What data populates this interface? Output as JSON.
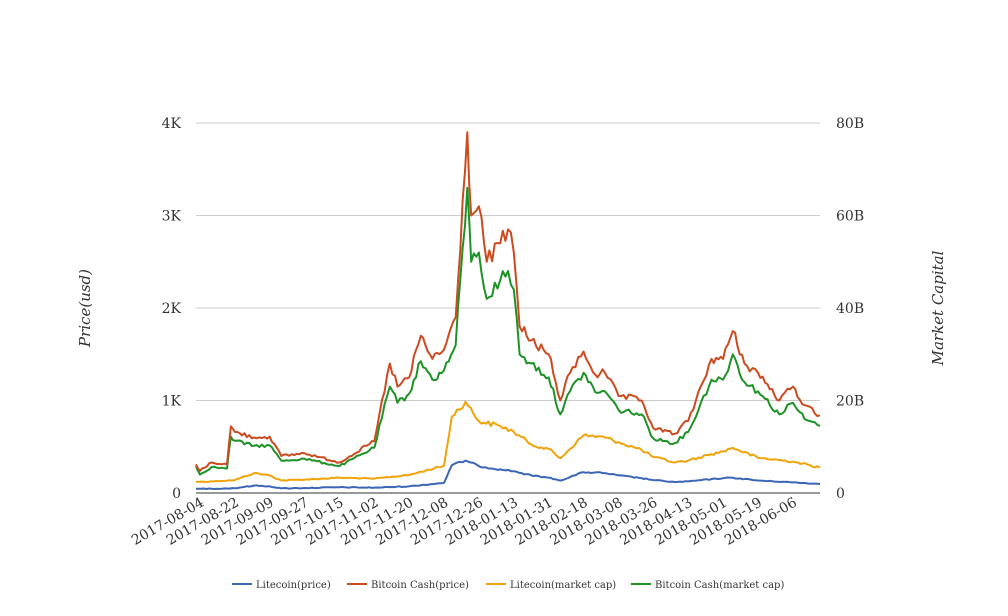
{
  "chart_data": {
    "type": "line",
    "title": "",
    "legend_position": "bottom",
    "grid": true,
    "x_tick_labels": [
      "2017-08-04",
      "2017-08-22",
      "2017-09-09",
      "2017-09-27",
      "2017-10-15",
      "2017-11-02",
      "2017-11-20",
      "2017-12-08",
      "2017-12-26",
      "2018-01-13",
      "2018-01-31",
      "2018-02-18",
      "2018-03-08",
      "2018-03-26",
      "2018-04-13",
      "2018-05-01",
      "2018-05-19",
      "2018-06-06"
    ],
    "x_range": [
      "2017-08-02",
      "2018-06-20"
    ],
    "y_left": {
      "label": "Price(usd)",
      "range": [
        0,
        4000
      ],
      "ticks": [
        0,
        1000,
        2000,
        3000,
        4000
      ],
      "tick_labels": [
        "0",
        "1K",
        "2K",
        "3K",
        "4K"
      ]
    },
    "y_right": {
      "label": "Market Capital",
      "range": [
        0,
        80000000000
      ],
      "ticks": [
        0,
        20000000000,
        40000000000,
        60000000000,
        80000000000
      ],
      "tick_labels": [
        "0",
        "20B",
        "40B",
        "60B",
        "80B"
      ]
    },
    "series": [
      {
        "name": "Litecoin(price)",
        "axis": "left",
        "color": "#3a66b5",
        "points": [
          [
            "2017-08-02",
            45
          ],
          [
            "2017-08-10",
            47
          ],
          [
            "2017-08-22",
            52
          ],
          [
            "2017-09-01",
            80
          ],
          [
            "2017-09-09",
            72
          ],
          [
            "2017-09-15",
            50
          ],
          [
            "2017-09-27",
            54
          ],
          [
            "2017-10-15",
            62
          ],
          [
            "2017-11-02",
            58
          ],
          [
            "2017-11-20",
            72
          ],
          [
            "2017-12-08",
            110
          ],
          [
            "2017-12-12",
            300
          ],
          [
            "2017-12-19",
            350
          ],
          [
            "2017-12-26",
            290
          ],
          [
            "2018-01-06",
            255
          ],
          [
            "2018-01-13",
            235
          ],
          [
            "2018-01-22",
            190
          ],
          [
            "2018-01-31",
            165
          ],
          [
            "2018-02-06",
            135
          ],
          [
            "2018-02-18",
            225
          ],
          [
            "2018-03-01",
            215
          ],
          [
            "2018-03-08",
            190
          ],
          [
            "2018-03-20",
            160
          ],
          [
            "2018-03-26",
            140
          ],
          [
            "2018-04-06",
            118
          ],
          [
            "2018-04-13",
            125
          ],
          [
            "2018-04-25",
            150
          ],
          [
            "2018-05-01",
            160
          ],
          [
            "2018-05-06",
            165
          ],
          [
            "2018-05-19",
            135
          ],
          [
            "2018-06-06",
            115
          ],
          [
            "2018-06-20",
            97
          ]
        ]
      },
      {
        "name": "Bitcoin Cash(price)",
        "axis": "left",
        "color": "#cc4a1f",
        "points": [
          [
            "2017-08-02",
            310
          ],
          [
            "2017-08-04",
            240
          ],
          [
            "2017-08-10",
            330
          ],
          [
            "2017-08-18",
            310
          ],
          [
            "2017-08-20",
            720
          ],
          [
            "2017-08-22",
            660
          ],
          [
            "2017-09-01",
            600
          ],
          [
            "2017-09-09",
            610
          ],
          [
            "2017-09-15",
            400
          ],
          [
            "2017-09-27",
            430
          ],
          [
            "2017-10-15",
            330
          ],
          [
            "2017-11-02",
            560
          ],
          [
            "2017-11-10",
            1400
          ],
          [
            "2017-11-14",
            1150
          ],
          [
            "2017-11-20",
            1250
          ],
          [
            "2017-11-26",
            1700
          ],
          [
            "2017-12-02",
            1450
          ],
          [
            "2017-12-08",
            1550
          ],
          [
            "2017-12-14",
            1900
          ],
          [
            "2017-12-20",
            3900
          ],
          [
            "2017-12-22",
            3000
          ],
          [
            "2017-12-26",
            3100
          ],
          [
            "2017-12-30",
            2500
          ],
          [
            "2018-01-06",
            2700
          ],
          [
            "2018-01-10",
            2850
          ],
          [
            "2018-01-13",
            2600
          ],
          [
            "2018-01-16",
            1800
          ],
          [
            "2018-01-22",
            1650
          ],
          [
            "2018-01-31",
            1500
          ],
          [
            "2018-02-06",
            1000
          ],
          [
            "2018-02-11",
            1300
          ],
          [
            "2018-02-18",
            1530
          ],
          [
            "2018-02-24",
            1280
          ],
          [
            "2018-03-01",
            1300
          ],
          [
            "2018-03-08",
            1050
          ],
          [
            "2018-03-20",
            1000
          ],
          [
            "2018-03-26",
            700
          ],
          [
            "2018-04-06",
            640
          ],
          [
            "2018-04-13",
            780
          ],
          [
            "2018-04-25",
            1450
          ],
          [
            "2018-05-01",
            1450
          ],
          [
            "2018-05-06",
            1750
          ],
          [
            "2018-05-12",
            1400
          ],
          [
            "2018-05-19",
            1300
          ],
          [
            "2018-05-30",
            1000
          ],
          [
            "2018-06-06",
            1150
          ],
          [
            "2018-06-12",
            950
          ],
          [
            "2018-06-20",
            840
          ]
        ]
      },
      {
        "name": "Litecoin(market cap)",
        "axis": "right",
        "color": "#f0a30a",
        "points": [
          [
            "2017-08-02",
            2400000000
          ],
          [
            "2017-08-10",
            2500000000
          ],
          [
            "2017-08-22",
            2800000000
          ],
          [
            "2017-09-01",
            4300000000
          ],
          [
            "2017-09-09",
            3800000000
          ],
          [
            "2017-09-15",
            2700000000
          ],
          [
            "2017-09-27",
            2900000000
          ],
          [
            "2017-10-15",
            3300000000
          ],
          [
            "2017-11-02",
            3100000000
          ],
          [
            "2017-11-20",
            3900000000
          ],
          [
            "2017-12-08",
            5900000000
          ],
          [
            "2017-12-12",
            16500000000
          ],
          [
            "2017-12-19",
            19700000000
          ],
          [
            "2017-12-26",
            15500000000
          ],
          [
            "2018-01-06",
            14500000000
          ],
          [
            "2018-01-13",
            13200000000
          ],
          [
            "2018-01-22",
            10500000000
          ],
          [
            "2018-01-31",
            9500000000
          ],
          [
            "2018-02-06",
            7500000000
          ],
          [
            "2018-02-18",
            12500000000
          ],
          [
            "2018-03-01",
            12000000000
          ],
          [
            "2018-03-08",
            11000000000
          ],
          [
            "2018-03-20",
            9300000000
          ],
          [
            "2018-03-26",
            7800000000
          ],
          [
            "2018-04-06",
            6600000000
          ],
          [
            "2018-04-13",
            7000000000
          ],
          [
            "2018-04-25",
            8400000000
          ],
          [
            "2018-05-01",
            9000000000
          ],
          [
            "2018-05-06",
            9800000000
          ],
          [
            "2018-05-19",
            7600000000
          ],
          [
            "2018-06-06",
            6800000000
          ],
          [
            "2018-06-20",
            5500000000
          ]
        ]
      },
      {
        "name": "Bitcoin Cash(market cap)",
        "axis": "right",
        "color": "#1d9225",
        "points": [
          [
            "2017-08-02",
            5800000000
          ],
          [
            "2017-08-04",
            4000000000
          ],
          [
            "2017-08-10",
            5600000000
          ],
          [
            "2017-08-18",
            5300000000
          ],
          [
            "2017-08-20",
            12200000000
          ],
          [
            "2017-08-22",
            11300000000
          ],
          [
            "2017-09-01",
            10200000000
          ],
          [
            "2017-09-09",
            10300000000
          ],
          [
            "2017-09-15",
            7000000000
          ],
          [
            "2017-09-27",
            7400000000
          ],
          [
            "2017-10-15",
            5800000000
          ],
          [
            "2017-11-02",
            9800000000
          ],
          [
            "2017-11-10",
            23000000000
          ],
          [
            "2017-11-14",
            19500000000
          ],
          [
            "2017-11-20",
            21500000000
          ],
          [
            "2017-11-26",
            28500000000
          ],
          [
            "2017-12-02",
            24500000000
          ],
          [
            "2017-12-08",
            26500000000
          ],
          [
            "2017-12-14",
            32000000000
          ],
          [
            "2017-12-20",
            66000000000
          ],
          [
            "2017-12-22",
            50000000000
          ],
          [
            "2017-12-26",
            52000000000
          ],
          [
            "2017-12-30",
            42000000000
          ],
          [
            "2018-01-06",
            46000000000
          ],
          [
            "2018-01-10",
            48000000000
          ],
          [
            "2018-01-13",
            44000000000
          ],
          [
            "2018-01-16",
            30000000000
          ],
          [
            "2018-01-22",
            28000000000
          ],
          [
            "2018-01-31",
            25000000000
          ],
          [
            "2018-02-06",
            17000000000
          ],
          [
            "2018-02-11",
            22000000000
          ],
          [
            "2018-02-18",
            26000000000
          ],
          [
            "2018-02-24",
            21800000000
          ],
          [
            "2018-03-01",
            22000000000
          ],
          [
            "2018-03-08",
            18000000000
          ],
          [
            "2018-03-20",
            17000000000
          ],
          [
            "2018-03-26",
            11800000000
          ],
          [
            "2018-04-06",
            10800000000
          ],
          [
            "2018-04-13",
            13200000000
          ],
          [
            "2018-04-25",
            24500000000
          ],
          [
            "2018-05-01",
            24500000000
          ],
          [
            "2018-05-06",
            30000000000
          ],
          [
            "2018-05-12",
            24000000000
          ],
          [
            "2018-05-19",
            22000000000
          ],
          [
            "2018-05-30",
            17000000000
          ],
          [
            "2018-06-06",
            19500000000
          ],
          [
            "2018-06-12",
            16000000000
          ],
          [
            "2018-06-20",
            14500000000
          ]
        ]
      }
    ]
  }
}
